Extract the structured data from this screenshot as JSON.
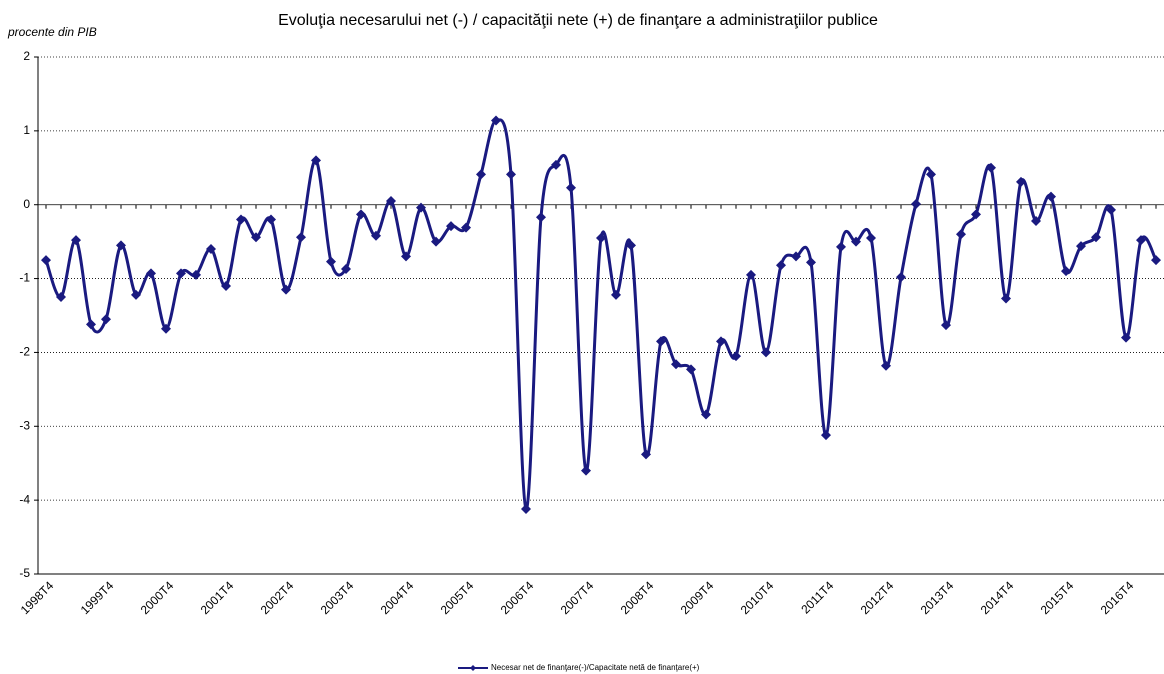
{
  "chart_data": {
    "type": "line",
    "title": "Evoluţia necesarului net (-) / capacităţii nete (+) de finanţare a administraţiilor publice",
    "y_label": "procente din PIB",
    "categories": [
      "1998T4",
      null,
      null,
      null,
      "1999T4",
      null,
      null,
      null,
      "2000T4",
      null,
      null,
      null,
      "2001T4",
      null,
      null,
      null,
      "2002T4",
      null,
      null,
      null,
      "2003T4",
      null,
      null,
      null,
      "2004T4",
      null,
      null,
      null,
      "2005T4",
      null,
      null,
      null,
      "2006T4",
      null,
      null,
      null,
      "2007T4",
      null,
      null,
      null,
      "2008T4",
      null,
      null,
      null,
      "2009T4",
      null,
      null,
      null,
      "2010T4",
      null,
      null,
      null,
      "2011T4",
      null,
      null,
      null,
      "2012T4",
      null,
      null,
      null,
      "2013T4",
      null,
      null,
      null,
      "2014T4",
      null,
      null,
      null,
      "2015T4",
      null,
      null,
      null,
      "2016T4",
      null,
      null
    ],
    "series": [
      {
        "name": "Necesar net de finanţare(-)/Capacitate netă de finanţare(+)",
        "color": "#1a1a80",
        "values": [
          -0.75,
          -1.25,
          -0.48,
          -1.62,
          -1.55,
          -0.55,
          -1.22,
          -0.93,
          -1.68,
          -0.93,
          -0.95,
          -0.6,
          -1.1,
          -0.2,
          -0.44,
          -0.2,
          -1.15,
          -0.44,
          0.6,
          -0.77,
          -0.87,
          -0.13,
          -0.42,
          0.05,
          -0.7,
          -0.04,
          -0.5,
          -0.29,
          -0.31,
          0.41,
          1.14,
          0.41,
          -4.12,
          -0.17,
          0.54,
          0.23,
          -3.6,
          -0.45,
          -1.22,
          -0.55,
          -3.38,
          -1.85,
          -2.16,
          -2.23,
          -2.84,
          -1.85,
          -2.05,
          -0.95,
          -2.0,
          -0.82,
          -0.7,
          -0.78,
          -3.12,
          -0.57,
          -0.5,
          -0.45,
          -2.18,
          -0.98,
          0.01,
          0.41,
          -1.63,
          -0.4,
          -0.13,
          0.5,
          -1.27,
          0.31,
          -0.22,
          0.11,
          -0.9,
          -0.56,
          -0.44,
          -0.07,
          -1.8,
          -0.48,
          -0.75
        ]
      }
    ],
    "ylim": [
      -5,
      2
    ],
    "yticks": [
      -5,
      -4,
      -3,
      -2,
      -1,
      0,
      1,
      2
    ],
    "grid": true,
    "legend": "bottom"
  }
}
